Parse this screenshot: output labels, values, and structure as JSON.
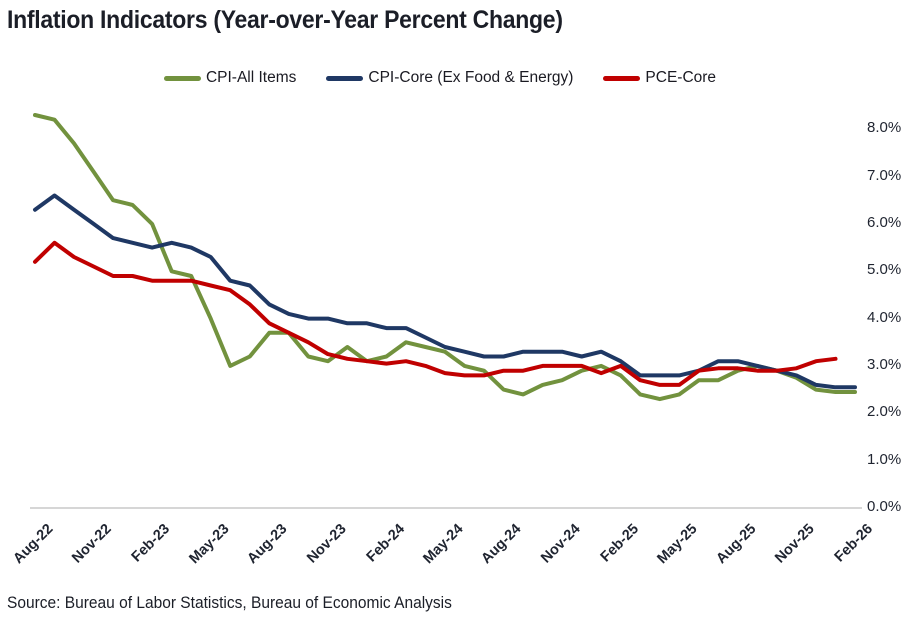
{
  "title": "Inflation Indicators (Year-over-Year Percent Change)",
  "source": "Source: Bureau of Labor Statistics, Bureau of Economic Analysis",
  "colors": {
    "cpi_all": "#72923e",
    "cpi_core": "#1f3864",
    "pce_core": "#c00000",
    "axis_line": "#d6d6d6",
    "text": "#1f2430"
  },
  "chart_data": {
    "type": "line",
    "title": "Inflation Indicators (Year-over-Year Percent Change)",
    "x": [
      "Aug-22",
      "Sep-22",
      "Oct-22",
      "Nov-22",
      "Dec-22",
      "Jan-23",
      "Feb-23",
      "Mar-23",
      "Apr-23",
      "May-23",
      "Jun-23",
      "Jul-23",
      "Aug-23",
      "Sep-23",
      "Oct-23",
      "Nov-23",
      "Dec-23",
      "Jan-24",
      "Feb-24",
      "Mar-24",
      "Apr-24",
      "May-24",
      "Jun-24",
      "Jul-24",
      "Aug-24",
      "Sep-24",
      "Oct-24",
      "Nov-24",
      "Dec-24",
      "Jan-25",
      "Feb-25",
      "Mar-25",
      "Apr-25",
      "May-25",
      "Jun-25",
      "Jul-25",
      "Aug-25",
      "Sep-25",
      "Oct-25",
      "Nov-25",
      "Dec-25",
      "Jan-26",
      "Feb-26"
    ],
    "x_tick_labels": [
      "Aug-22",
      "Nov-22",
      "Feb-23",
      "May-23",
      "Aug-23",
      "Nov-23",
      "Feb-24",
      "May-24",
      "Aug-24",
      "Nov-24",
      "Feb-25",
      "May-25",
      "Aug-25",
      "Nov-25",
      "Feb-26"
    ],
    "x_tick_every": 3,
    "series": [
      {
        "name": "CPI-All Items",
        "color": "#72923e",
        "values": [
          8.3,
          8.2,
          7.7,
          7.1,
          6.5,
          6.4,
          6.0,
          5.0,
          4.9,
          4.0,
          3.0,
          3.2,
          3.7,
          3.7,
          3.2,
          3.1,
          3.4,
          3.1,
          3.2,
          3.5,
          3.4,
          3.3,
          3.0,
          2.9,
          2.5,
          2.4,
          2.6,
          2.7,
          2.9,
          3.0,
          2.8,
          2.4,
          2.3,
          2.4,
          2.7,
          2.7,
          2.9,
          3.0,
          2.9,
          2.75,
          2.5,
          2.45,
          2.45
        ]
      },
      {
        "name": "CPI-Core (Ex Food & Energy)",
        "color": "#1f3864",
        "values": [
          6.3,
          6.6,
          6.3,
          6.0,
          5.7,
          5.6,
          5.5,
          5.6,
          5.5,
          5.3,
          4.8,
          4.7,
          4.3,
          4.1,
          4.0,
          4.0,
          3.9,
          3.9,
          3.8,
          3.8,
          3.6,
          3.4,
          3.3,
          3.2,
          3.2,
          3.3,
          3.3,
          3.3,
          3.2,
          3.3,
          3.1,
          2.8,
          2.8,
          2.8,
          2.9,
          3.1,
          3.1,
          3.0,
          2.9,
          2.8,
          2.6,
          2.55,
          2.55
        ]
      },
      {
        "name": "PCE-Core",
        "color": "#c00000",
        "values": [
          5.2,
          5.6,
          5.3,
          5.1,
          4.9,
          4.9,
          4.8,
          4.8,
          4.8,
          4.7,
          4.6,
          4.3,
          3.9,
          3.7,
          3.5,
          3.25,
          3.15,
          3.1,
          3.05,
          3.1,
          3.0,
          2.85,
          2.8,
          2.8,
          2.9,
          2.9,
          3.0,
          3.0,
          3.0,
          2.85,
          3.0,
          2.7,
          2.6,
          2.6,
          2.9,
          2.95,
          2.95,
          2.9,
          2.9,
          2.95,
          3.1,
          3.15,
          null
        ]
      }
    ],
    "ylabel": "",
    "xlabel": "",
    "ylim": [
      0,
      8
    ],
    "y_ticks": [
      {
        "v": 8,
        "label": "8.0%"
      },
      {
        "v": 7,
        "label": "7.0%"
      },
      {
        "v": 6,
        "label": "6.0%"
      },
      {
        "v": 5,
        "label": "5.0%"
      },
      {
        "v": 4,
        "label": "4.0%"
      },
      {
        "v": 3,
        "label": "3.0%"
      },
      {
        "v": 2,
        "label": "2.0%"
      },
      {
        "v": 1,
        "label": "1.0%"
      },
      {
        "v": 0,
        "label": "0.0%"
      }
    ],
    "grid": false,
    "legend_position": "top",
    "y_axis_side": "right"
  }
}
